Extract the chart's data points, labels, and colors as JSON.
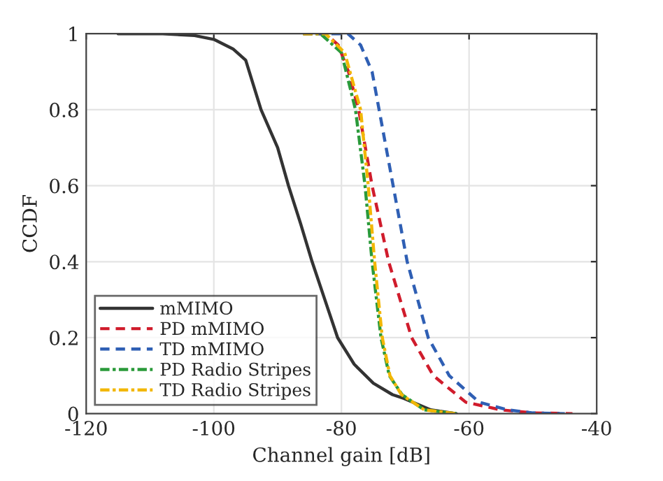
{
  "chart_data": {
    "type": "line",
    "xlabel": "Channel gain [dB]",
    "ylabel": "CCDF",
    "xlim": [
      -120,
      -40
    ],
    "ylim": [
      0,
      1
    ],
    "xticks": [
      -120,
      -100,
      -80,
      -60,
      -40
    ],
    "yticks": [
      0,
      0.2,
      0.4,
      0.6,
      0.8,
      1
    ],
    "grid": true,
    "legend": "bottom left",
    "marker": "none",
    "series": [
      {
        "name": "mMIMO",
        "color": "#333333",
        "line_style": "solid",
        "x": [
          -115,
          -108,
          -103,
          -100,
          -97,
          -95,
          -92.6,
          -90,
          -88.3,
          -86.4,
          -84.6,
          -82.6,
          -80.6,
          -78,
          -75,
          -72,
          -70.2,
          -66,
          -62
        ],
        "values": [
          1,
          1,
          0.995,
          0.985,
          0.96,
          0.93,
          0.8,
          0.7,
          0.6,
          0.5,
          0.4,
          0.3,
          0.2,
          0.13,
          0.08,
          0.05,
          0.04,
          0.01,
          0
        ]
      },
      {
        "name": "PD mMIMO",
        "color": "#d01c2c",
        "line_style": "dashed",
        "x": [
          -86,
          -82.5,
          -80.5,
          -78.9,
          -77.3,
          -75.2,
          -72.6,
          -69,
          -65.6,
          -60.5,
          -55,
          -50,
          -43.8
        ],
        "values": [
          1,
          1,
          0.97,
          0.9,
          0.8,
          0.6,
          0.4,
          0.2,
          0.1,
          0.03,
          0.01,
          0.002,
          0
        ]
      },
      {
        "name": "TD mMIMO",
        "color": "#2f5fb4",
        "line_style": "dashed",
        "x": [
          -84,
          -79,
          -77,
          -75.2,
          -74.1,
          -71.9,
          -69.7,
          -66.4,
          -63.1,
          -58.4,
          -54,
          -50,
          -45
        ],
        "values": [
          1,
          1,
          0.97,
          0.9,
          0.8,
          0.6,
          0.4,
          0.2,
          0.1,
          0.03,
          0.01,
          0.002,
          0
        ]
      },
      {
        "name": "PD Radio Stripes",
        "color": "#2a9a3a",
        "line_style": "dashdot",
        "x": [
          -86,
          -83.3,
          -80,
          -77.8,
          -76.3,
          -75.2,
          -73.8,
          -72.5,
          -70.5,
          -67,
          -62
        ],
        "values": [
          1,
          1,
          0.95,
          0.8,
          0.6,
          0.4,
          0.2,
          0.1,
          0.05,
          0.01,
          0
        ]
      },
      {
        "name": "TD Radio Stripes",
        "color": "#f2b705",
        "line_style": "dashdot",
        "x": [
          -86,
          -82.5,
          -79.5,
          -77,
          -75.8,
          -74.8,
          -73.6,
          -72.4,
          -70.6,
          -67,
          -62
        ],
        "values": [
          1,
          1,
          0.95,
          0.8,
          0.6,
          0.4,
          0.2,
          0.1,
          0.05,
          0.01,
          0
        ]
      }
    ]
  }
}
